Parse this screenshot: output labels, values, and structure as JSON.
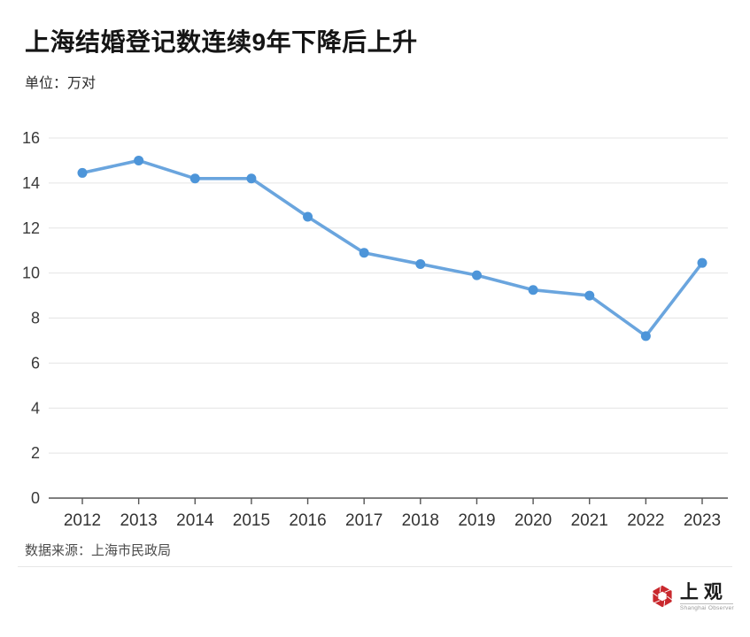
{
  "header": {
    "title": "上海结婚登记数连续9年下降后上升",
    "unit_label": "单位：万对"
  },
  "chart_data": {
    "type": "line",
    "title": "上海结婚登记数连续9年下降后上升",
    "unit": "万对",
    "categories": [
      "2012",
      "2013",
      "2014",
      "2015",
      "2016",
      "2017",
      "2018",
      "2019",
      "2020",
      "2021",
      "2022",
      "2023"
    ],
    "values": [
      14.45,
      15.0,
      14.2,
      14.2,
      12.5,
      10.9,
      10.4,
      9.9,
      9.25,
      9.0,
      7.2,
      10.45
    ],
    "ylim": [
      0,
      16
    ],
    "ytick_step": 2,
    "yticks": [
      0,
      2,
      4,
      6,
      8,
      10,
      12,
      14,
      16
    ],
    "grid": true,
    "legend": "none",
    "line_color": "#6aa5de",
    "point_color": "#4d95d9",
    "gridline_color": "#e4e4e4",
    "axis_color": "#555555",
    "tick_label_color": "#3a3a3a"
  },
  "footer": {
    "source_label": "数据来源：上海市民政局",
    "logo_text": "上观",
    "logo_subtext": "Shanghai Observer",
    "logo_color": "#c9282d"
  }
}
